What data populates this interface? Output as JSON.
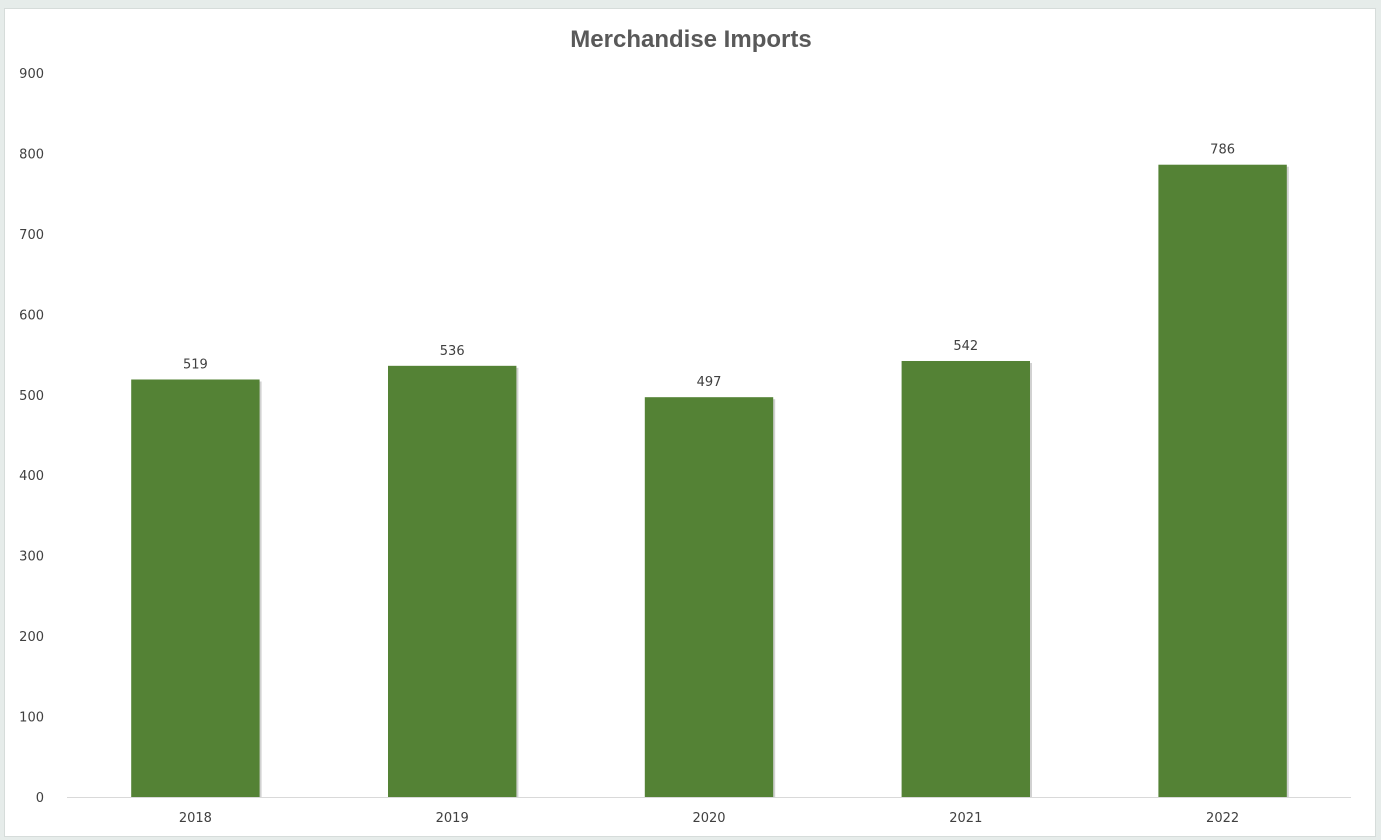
{
  "chart_data": {
    "type": "bar",
    "title": "Merchandise Imports",
    "categories": [
      "2018",
      "2019",
      "2020",
      "2021",
      "2022"
    ],
    "values": [
      519,
      536,
      497,
      542,
      786
    ],
    "data_labels": [
      "519",
      "536",
      "497",
      "542",
      "786"
    ],
    "y_ticks": [
      "0",
      "100",
      "200",
      "300",
      "400",
      "500",
      "600",
      "700",
      "800",
      "900"
    ],
    "ylim": [
      0,
      900
    ],
    "grid": false,
    "legend": "none",
    "colors": {
      "bar": "#548235",
      "axis": "#d9d9d9",
      "text": "#404040",
      "title": "#595959"
    }
  }
}
